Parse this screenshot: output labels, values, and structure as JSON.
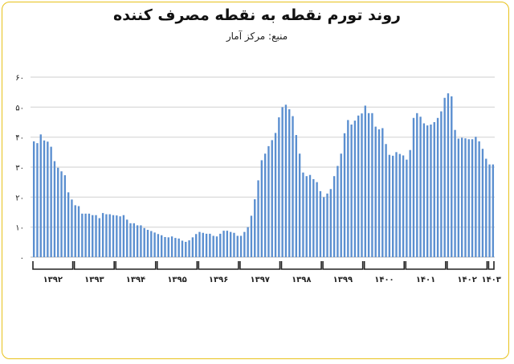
{
  "chart_data": {
    "type": "bar",
    "title": "روند تورم نقطه به نقطه مصرف کننده",
    "subtitle": "منبع: مرکز آمار",
    "xlabel": "",
    "ylabel": "",
    "ylim": [
      0,
      60
    ],
    "grid": true,
    "y_ticks": [
      0,
      10,
      20,
      30,
      40,
      50,
      60
    ],
    "y_tick_labels": [
      "۰",
      "۱۰",
      "۲۰",
      "۳۰",
      "۴۰",
      "۵۰",
      "۶۰"
    ],
    "categories": [
      "۱۳۹۲",
      "۱۳۹۳",
      "۱۳۹۴",
      "۱۳۹۵",
      "۱۳۹۶",
      "۱۳۹۷",
      "۱۳۹۸",
      "۱۳۹۹",
      "۱۴۰۰",
      "۱۴۰۱",
      "۱۴۰۲",
      "۱۴۰۳"
    ],
    "series": [
      {
        "name": "تورم نقطه به نقطه",
        "color": "#5b8fd0",
        "values": [
          [
            38.6,
            38.0,
            40.9,
            38.9,
            38.5,
            36.8,
            32.0,
            29.8,
            28.6,
            27.3,
            21.6,
            19.2
          ],
          [
            17.3,
            17.0,
            14.5,
            14.5,
            14.5,
            14.0,
            14.0,
            13.0,
            14.7,
            14.3,
            14.3,
            14.0
          ],
          [
            13.9,
            13.6,
            14.0,
            12.5,
            11.3,
            11.3,
            10.6,
            10.6,
            9.7,
            9.1,
            8.7,
            8.2
          ],
          [
            7.7,
            7.3,
            6.7,
            6.6,
            6.9,
            6.4,
            6.2,
            5.5,
            5.1,
            5.6,
            6.6,
            7.7
          ],
          [
            8.4,
            8.1,
            7.8,
            7.8,
            7.1,
            6.9,
            7.8,
            8.8,
            8.8,
            8.4,
            8.1,
            7.1
          ],
          [
            7.1,
            8.4,
            10.0,
            13.8,
            19.3,
            25.6,
            32.3,
            34.5,
            37.0,
            39.0,
            41.4,
            46.6
          ],
          [
            50.0,
            50.8,
            49.3,
            47.0,
            40.7,
            34.5,
            28.2,
            27.0,
            27.4,
            26.0,
            25.0,
            22.0
          ],
          [
            20.0,
            21.2,
            22.7,
            27.0,
            30.4,
            34.5,
            41.3,
            45.7,
            44.2,
            45.5,
            47.2,
            47.9
          ],
          [
            50.5,
            48.0,
            48.0,
            43.5,
            42.6,
            43.0,
            37.7,
            34.1,
            33.8,
            35.0,
            34.4,
            33.9
          ],
          [
            32.5,
            35.7,
            46.4,
            48.0,
            46.8,
            44.6,
            43.9,
            44.2,
            45.0,
            46.4,
            48.6,
            53.1
          ],
          [
            54.6,
            53.6,
            42.4,
            39.5,
            39.8,
            39.6,
            39.3,
            39.3,
            40.1,
            38.6,
            36.1,
            32.8
          ],
          [
            30.9,
            30.9
          ]
        ]
      }
    ],
    "legend": "none"
  }
}
